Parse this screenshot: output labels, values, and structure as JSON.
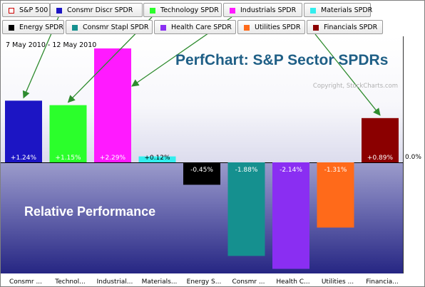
{
  "tabs": [
    {
      "label": "S&P 500",
      "color": "#cc0000",
      "style": "outline"
    },
    {
      "label": "Consmr Discr SPDR",
      "color": "#1c15c4"
    },
    {
      "label": "Technology SPDR",
      "color": "#2bff2b"
    },
    {
      "label": "Industrials SPDR",
      "color": "#ff1aff"
    },
    {
      "label": "Materials SPDR",
      "color": "#33eeee"
    },
    {
      "label": "Energy SPDR",
      "color": "#000000"
    },
    {
      "label": "Consmr Stapl SPDR",
      "color": "#15908f"
    },
    {
      "label": "Health Care SPDR",
      "color": "#8a2ef2"
    },
    {
      "label": "Utilities SPDR",
      "color": "#ff6a1a"
    },
    {
      "label": "Financials SPDR",
      "color": "#8b0000"
    }
  ],
  "date_range": "7 May 2010 - 12 May 2010",
  "chart_data": {
    "type": "bar",
    "title": "PerfChart: S&P Sector SPDRs",
    "subtitle": "Relative Performance",
    "watermark": "Copyright, StockCharts.com",
    "zero_label": "0.0%",
    "ylim": [
      -2.5,
      2.6
    ],
    "categories": [
      "Consmr ...",
      "Technol...",
      "Industrial...",
      "Materials...",
      "Energy S...",
      "Consmr ...",
      "Health C...",
      "Utilities ...",
      "Financia..."
    ],
    "values": [
      1.24,
      1.15,
      2.29,
      0.12,
      -0.45,
      -1.88,
      -2.14,
      -1.31,
      0.89
    ],
    "labels": [
      "+1.24%",
      "+1.15%",
      "+2.29%",
      "+0.12%",
      "-0.45%",
      "-1.88%",
      "-2.14%",
      "-1.31%",
      "+0.89%"
    ],
    "colors": [
      "#1c15c4",
      "#2bff2b",
      "#ff1aff",
      "#33eeee",
      "#000000",
      "#15908f",
      "#8a2ef2",
      "#ff6a1a",
      "#8b0000"
    ],
    "arrow_color": "#2e8b2e",
    "arrows": [
      {
        "from_tab": 1,
        "to_bar": 0
      },
      {
        "from_tab": 2,
        "to_bar": 1
      },
      {
        "from_tab": 3,
        "to_bar": 2
      },
      {
        "from_tab": 9,
        "to_bar": 8
      }
    ]
  }
}
